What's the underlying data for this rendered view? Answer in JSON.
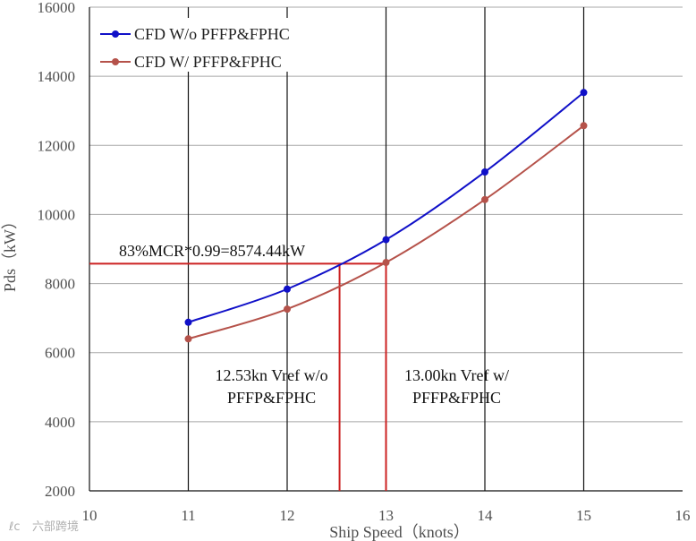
{
  "chart_data": {
    "type": "line",
    "title": "",
    "xlabel": "Ship Speed（knots）",
    "ylabel": "Pds（kW）",
    "xlim": [
      10,
      16
    ],
    "ylim": [
      2000,
      16000
    ],
    "x_ticks": [
      10,
      11,
      12,
      13,
      14,
      15,
      16
    ],
    "y_ticks": [
      2000,
      4000,
      6000,
      8000,
      10000,
      12000,
      14000,
      16000
    ],
    "x_tick_labels": [
      "10",
      "11",
      "12",
      "13",
      "14",
      "15",
      "16"
    ],
    "y_tick_labels": [
      "2000",
      "4000",
      "6000",
      "8000",
      "10000",
      "12000",
      "14000",
      "16000"
    ],
    "grid": true,
    "legend_position": "top-left",
    "series": [
      {
        "name": "CFD W/o  PFFP&FPHC",
        "color": "#1010c8",
        "x": [
          11,
          12,
          13,
          14,
          15
        ],
        "y": [
          6880,
          7840,
          9270,
          11230,
          13530
        ]
      },
      {
        "name": "CFD W/  PFFP&FPHC",
        "color": "#b5524a",
        "x": [
          11,
          12,
          13,
          14,
          15
        ],
        "y": [
          6400,
          7260,
          8610,
          10430,
          12570
        ]
      }
    ],
    "reference": {
      "color": "#cc2222",
      "mcr_value": 8574.44,
      "mcr_label": "83%MCR*0.99=8574.44kW",
      "crossings": [
        {
          "x": 12.53,
          "label_line1": "12.53kn Vref w/o",
          "label_line2": "PFFP&FPHC"
        },
        {
          "x": 13.0,
          "label_line1": "13.00kn Vref w/",
          "label_line2": "PFFP&FPHC"
        }
      ]
    }
  },
  "watermark": {
    "text": "六部跨境",
    "logo_text": "ℓᴄ"
  }
}
